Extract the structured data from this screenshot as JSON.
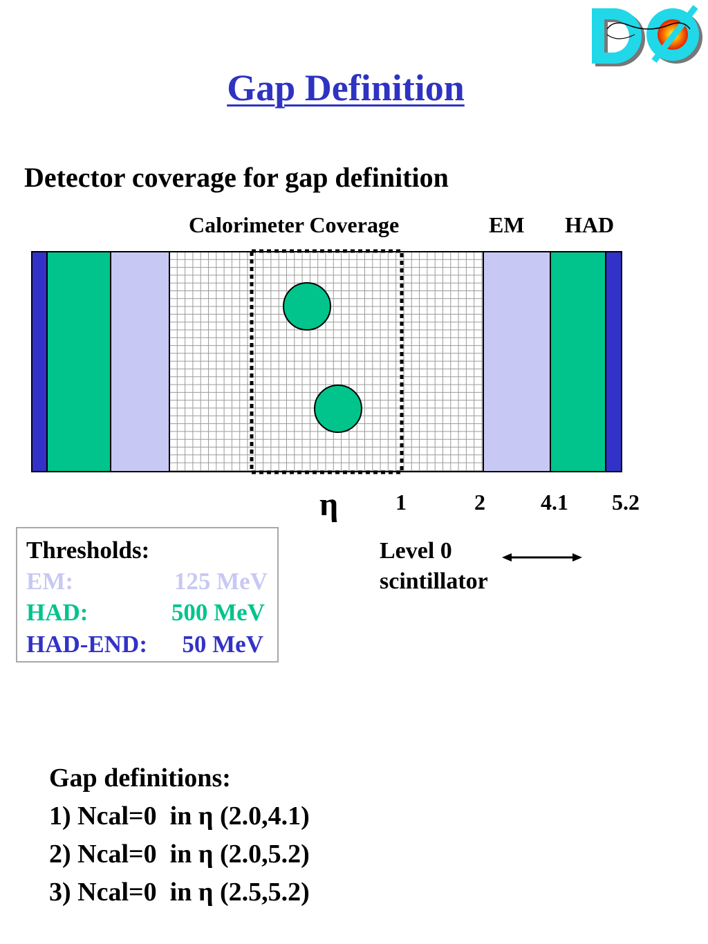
{
  "title": "Gap Definition",
  "subtitle": "Detector coverage for gap definition",
  "labels": {
    "calorimeter": "Calorimeter Coverage",
    "em": "EM",
    "had": "HAD"
  },
  "axis": {
    "symbol": "η",
    "ticks": [
      "1",
      "2",
      "4.1",
      "5.2"
    ]
  },
  "thresholds": {
    "heading": "Thresholds:",
    "rows": [
      {
        "label": "EM:",
        "value": "125 MeV",
        "color": "#c8c8f4"
      },
      {
        "label": "HAD:",
        "value": "500 MeV",
        "color": "#00c48c"
      },
      {
        "label": "HAD-END:",
        "value": "50 MeV",
        "color": "#3232c8"
      }
    ]
  },
  "level0": {
    "line1": "Level 0",
    "line2": "scintillator"
  },
  "gap_definitions": {
    "heading": "Gap definitions:",
    "items": [
      "1) Ncal=0  in η (2.0,4.1)",
      "2) Ncal=0  in η (2.0,5.2)",
      "3) Ncal=0  in η (2.5,5.2)"
    ]
  },
  "colors": {
    "title": "#2e33c2",
    "em_region": "#c8c8f4",
    "had_region": "#00c48c",
    "had_end_region": "#3232c8",
    "grid": "#9a9a9a"
  },
  "logo": {
    "text": "DØ"
  }
}
